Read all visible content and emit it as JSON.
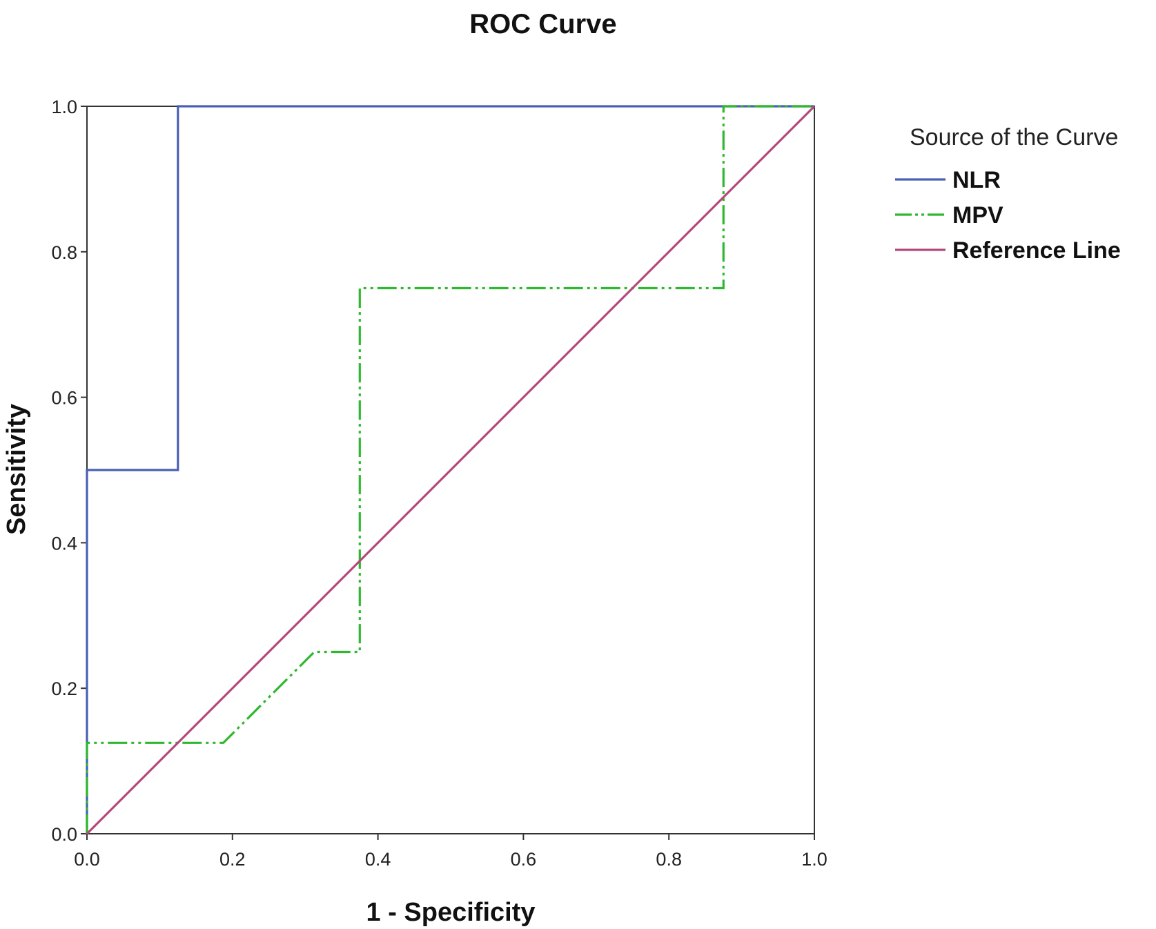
{
  "chart_data": {
    "type": "line",
    "title": "ROC Curve",
    "xlabel": "1 - Specificity",
    "ylabel": "Sensitivity",
    "xlim": [
      0,
      1
    ],
    "ylim": [
      0,
      1
    ],
    "xticks": [
      "0.0",
      "0.2",
      "0.4",
      "0.6",
      "0.8",
      "1.0"
    ],
    "yticks": [
      "0.0",
      "0.2",
      "0.4",
      "0.6",
      "0.8",
      "1.0"
    ],
    "grid": false,
    "legend": {
      "title": "Source of the Curve",
      "placement": "right"
    },
    "series": [
      {
        "name": "NLR",
        "color": "#4a5fb4",
        "dash": "solid",
        "points": [
          [
            0,
            0
          ],
          [
            0,
            0.5
          ],
          [
            0.125,
            0.5
          ],
          [
            0.125,
            1.0
          ],
          [
            1.0,
            1.0
          ]
        ]
      },
      {
        "name": "MPV",
        "color": "#2eb82e",
        "dash": "dash-dot-dot",
        "points": [
          [
            0,
            0
          ],
          [
            0,
            0.125
          ],
          [
            0.1875,
            0.125
          ],
          [
            0.3125,
            0.25
          ],
          [
            0.375,
            0.25
          ],
          [
            0.375,
            0.75
          ],
          [
            0.875,
            0.75
          ],
          [
            0.875,
            1.0
          ],
          [
            1.0,
            1.0
          ]
        ]
      },
      {
        "name": "Reference Line",
        "color": "#b5487a",
        "dash": "solid",
        "points": [
          [
            0,
            0
          ],
          [
            1.0,
            1.0
          ]
        ]
      }
    ]
  }
}
